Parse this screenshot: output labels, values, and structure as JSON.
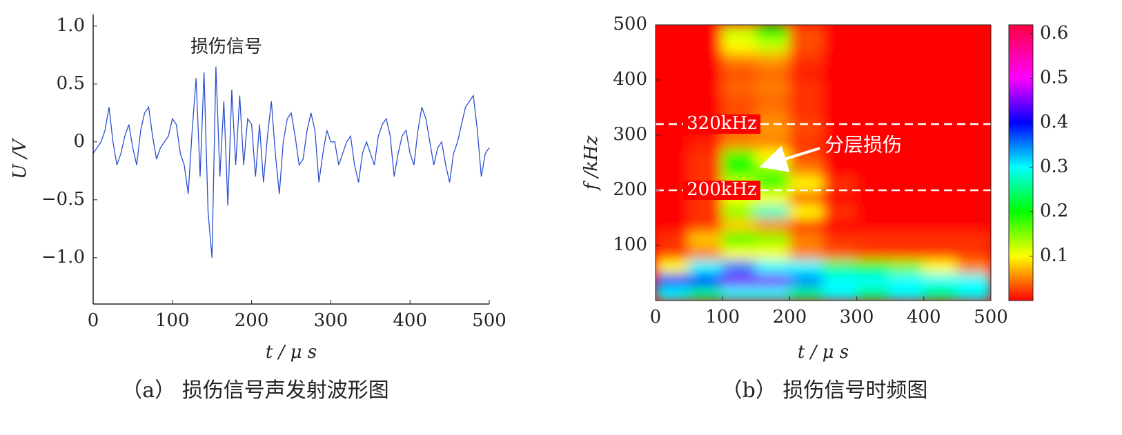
{
  "chart_data": [
    {
      "type": "line",
      "annotation": "损伤信号",
      "xlabel": "t / μ s",
      "ylabel": "U /V",
      "caption": "（a） 损伤信号声发射波形图",
      "color": "#2a4fd0",
      "x": [
        0,
        5,
        10,
        15,
        20,
        25,
        30,
        35,
        40,
        45,
        50,
        55,
        60,
        65,
        70,
        75,
        80,
        85,
        90,
        95,
        100,
        105,
        110,
        115,
        120,
        125,
        130,
        135,
        140,
        145,
        150,
        155,
        160,
        165,
        170,
        175,
        180,
        185,
        190,
        195,
        200,
        205,
        210,
        215,
        220,
        225,
        230,
        235,
        240,
        245,
        250,
        255,
        260,
        265,
        270,
        275,
        280,
        285,
        290,
        295,
        300,
        305,
        310,
        315,
        320,
        325,
        330,
        335,
        340,
        345,
        350,
        355,
        360,
        365,
        370,
        375,
        380,
        385,
        390,
        395,
        400,
        405,
        410,
        415,
        420,
        425,
        430,
        435,
        440,
        445,
        450,
        455,
        460,
        465,
        470,
        475,
        480,
        485,
        490,
        495,
        500
      ],
      "values": [
        -0.1,
        -0.05,
        0.0,
        0.1,
        0.3,
        0.0,
        -0.2,
        -0.1,
        0.05,
        0.15,
        -0.05,
        -0.2,
        0.1,
        0.25,
        0.3,
        0.05,
        -0.15,
        -0.05,
        0.0,
        0.05,
        0.2,
        0.15,
        -0.1,
        -0.2,
        -0.45,
        0.1,
        0.55,
        -0.3,
        0.6,
        -0.6,
        -1.0,
        0.65,
        -0.3,
        0.35,
        -0.55,
        0.45,
        -0.2,
        0.4,
        -0.2,
        0.2,
        0.15,
        -0.3,
        0.15,
        -0.35,
        0.05,
        0.35,
        -0.1,
        -0.45,
        0.0,
        0.2,
        0.25,
        0.05,
        -0.2,
        -0.15,
        0.1,
        0.25,
        0.1,
        -0.35,
        -0.1,
        0.1,
        0.0,
        0.0,
        -0.2,
        -0.1,
        0.0,
        0.05,
        -0.2,
        -0.35,
        -0.1,
        0.0,
        -0.1,
        -0.2,
        0.05,
        0.15,
        0.2,
        0.05,
        -0.3,
        -0.1,
        0.05,
        0.1,
        -0.1,
        -0.2,
        0.1,
        0.3,
        0.2,
        0.0,
        -0.2,
        -0.05,
        0.0,
        -0.2,
        -0.35,
        -0.1,
        0.0,
        0.15,
        0.3,
        0.35,
        0.4,
        0.1,
        -0.3,
        -0.1,
        -0.05
      ],
      "xlim": [
        0,
        500
      ],
      "xticks": [
        0,
        100,
        200,
        300,
        400,
        500
      ],
      "ylim": [
        -1.4,
        1.1
      ],
      "yticks": [
        {
          "value": 1,
          "label": "1.0"
        },
        0.5,
        0,
        {
          "value": -0.5,
          "label": "−0.5"
        },
        {
          "value": -1,
          "label": "−1.0"
        }
      ]
    },
    {
      "type": "heatmap",
      "xlabel": "t / μ s",
      "ylabel": "f /kHz",
      "caption": "（b） 损伤信号时频图",
      "annotation": "分层损伤",
      "hlines": [
        {
          "value": 320,
          "label": "320kHz"
        },
        {
          "value": 200,
          "label": "200kHz"
        }
      ],
      "x": [
        0,
        50,
        100,
        150,
        200,
        250,
        300,
        350,
        400,
        450,
        500
      ],
      "y": [
        0,
        25,
        50,
        75,
        100,
        125,
        150,
        175,
        200,
        225,
        250,
        275,
        300,
        325,
        350,
        375,
        400,
        425,
        450,
        475,
        500
      ],
      "z": [
        [
          0.3,
          0.25,
          0.3,
          0.3,
          0.25,
          0.3,
          0.25,
          0.3,
          0.25,
          0.3
        ],
        [
          0.4,
          0.4,
          0.45,
          0.45,
          0.35,
          0.3,
          0.3,
          0.3,
          0.3,
          0.3
        ],
        [
          0.1,
          0.3,
          0.35,
          0.3,
          0.3,
          0.25,
          0.2,
          0.15,
          0.1,
          0.05
        ],
        [
          0.02,
          0.05,
          0.1,
          0.1,
          0.05,
          0.03,
          0.02,
          0.02,
          0.02,
          0.02
        ],
        [
          0.02,
          0.08,
          0.2,
          0.15,
          0.05,
          0.02,
          0.02,
          0.02,
          0.02,
          0.02
        ],
        [
          0,
          0.02,
          0.08,
          0.05,
          0.02,
          0,
          0,
          0,
          0,
          0
        ],
        [
          0,
          0.02,
          0.15,
          0.28,
          0.1,
          0.02,
          0,
          0,
          0,
          0
        ],
        [
          0,
          0.02,
          0.1,
          0.1,
          0.03,
          0,
          0,
          0,
          0,
          0
        ],
        [
          0,
          0.02,
          0.12,
          0.2,
          0.1,
          0.02,
          0,
          0,
          0,
          0
        ],
        [
          0,
          0.02,
          0.2,
          0.15,
          0.05,
          0,
          0,
          0,
          0,
          0
        ],
        [
          0,
          0.02,
          0.18,
          0.1,
          0.03,
          0,
          0,
          0,
          0,
          0
        ],
        [
          0,
          0.01,
          0.05,
          0.05,
          0.02,
          0,
          0,
          0,
          0,
          0
        ],
        [
          0,
          0,
          0.04,
          0.06,
          0.03,
          0,
          0,
          0,
          0,
          0
        ],
        [
          0,
          0,
          0.03,
          0.05,
          0.02,
          0,
          0,
          0,
          0,
          0
        ],
        [
          0,
          0,
          0.03,
          0.04,
          0.02,
          0,
          0,
          0,
          0,
          0
        ],
        [
          0,
          0,
          0.04,
          0.05,
          0.02,
          0,
          0,
          0,
          0,
          0
        ],
        [
          0,
          0,
          0.03,
          0.04,
          0.01,
          0,
          0,
          0,
          0,
          0
        ],
        [
          0,
          0,
          0.05,
          0.06,
          0.02,
          0,
          0,
          0,
          0,
          0
        ],
        [
          0,
          0,
          0.1,
          0.12,
          0.03,
          0,
          0,
          0,
          0,
          0
        ],
        [
          0,
          0,
          0.12,
          0.2,
          0.03,
          0,
          0,
          0,
          0,
          0
        ]
      ],
      "colorscale": [
        [
          0,
          "#ff0000"
        ],
        [
          0.05,
          "#ff8000"
        ],
        [
          0.1,
          "#ffff00"
        ],
        [
          0.2,
          "#00ff00"
        ],
        [
          0.3,
          "#00ffff"
        ],
        [
          0.4,
          "#0000ff"
        ],
        [
          0.5,
          "#ff00ff"
        ],
        [
          0.62,
          "#ff0040"
        ]
      ],
      "zlim": [
        0,
        0.62
      ],
      "zticks": [
        0.1,
        0.2,
        0.3,
        0.4,
        0.5,
        0.6
      ],
      "xlim": [
        0,
        500
      ],
      "xticks": [
        0,
        100,
        200,
        300,
        400,
        500
      ],
      "ylim": [
        0,
        500
      ],
      "yticks": [
        100,
        200,
        300,
        400,
        500
      ]
    }
  ]
}
